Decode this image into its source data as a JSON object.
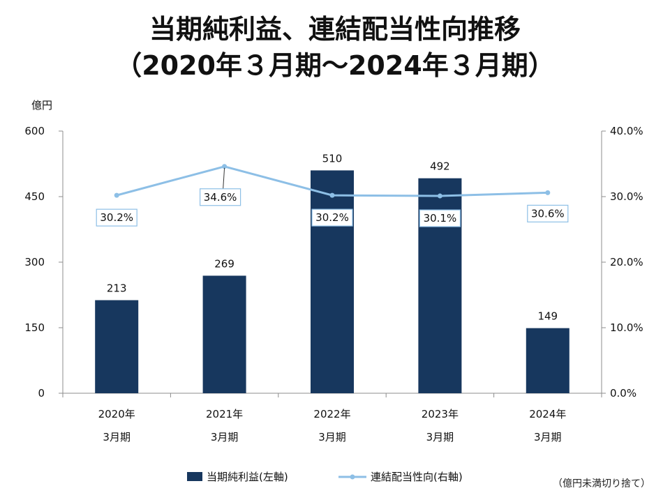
{
  "title_line1": "当期純利益、連結配当性向推移",
  "title_line2": "（2020年３月期～2024年３月期）",
  "note": "（億円未満切り捨て）",
  "chart_data": {
    "type": "bar",
    "categories": [
      [
        "2020年",
        "3月期"
      ],
      [
        "2021年",
        "3月期"
      ],
      [
        "2022年",
        "3月期"
      ],
      [
        "2023年",
        "3月期"
      ],
      [
        "2024年",
        "3月期"
      ]
    ],
    "y_left_unit": "億円",
    "y_left_lim": [
      0,
      600
    ],
    "y_left_ticks": [
      0,
      150,
      300,
      450,
      600
    ],
    "y_left_tick_labels": [
      "0",
      "150",
      "300",
      "450",
      "600"
    ],
    "y_right_lim": [
      0,
      40
    ],
    "y_right_ticks": [
      0,
      10,
      20,
      30,
      40
    ],
    "y_right_tick_labels": [
      "0.0%",
      "10.0%",
      "20.0%",
      "30.0%",
      "40.0%"
    ],
    "series": [
      {
        "name": "当期純利益(左軸)",
        "type": "bar",
        "axis": "left",
        "color": "#17375e",
        "values": [
          213,
          269,
          510,
          492,
          149
        ],
        "labels": [
          "213",
          "269",
          "510",
          "492",
          "149"
        ]
      },
      {
        "name": "連結配当性向(右軸)",
        "type": "line",
        "axis": "right",
        "color": "#8dbfe6",
        "values": [
          30.2,
          34.6,
          30.2,
          30.1,
          30.6
        ],
        "labels": [
          "30.2%",
          "34.6%",
          "30.2%",
          "30.1%",
          "30.6%"
        ]
      }
    ],
    "grid": false,
    "legend_position": "bottom"
  }
}
